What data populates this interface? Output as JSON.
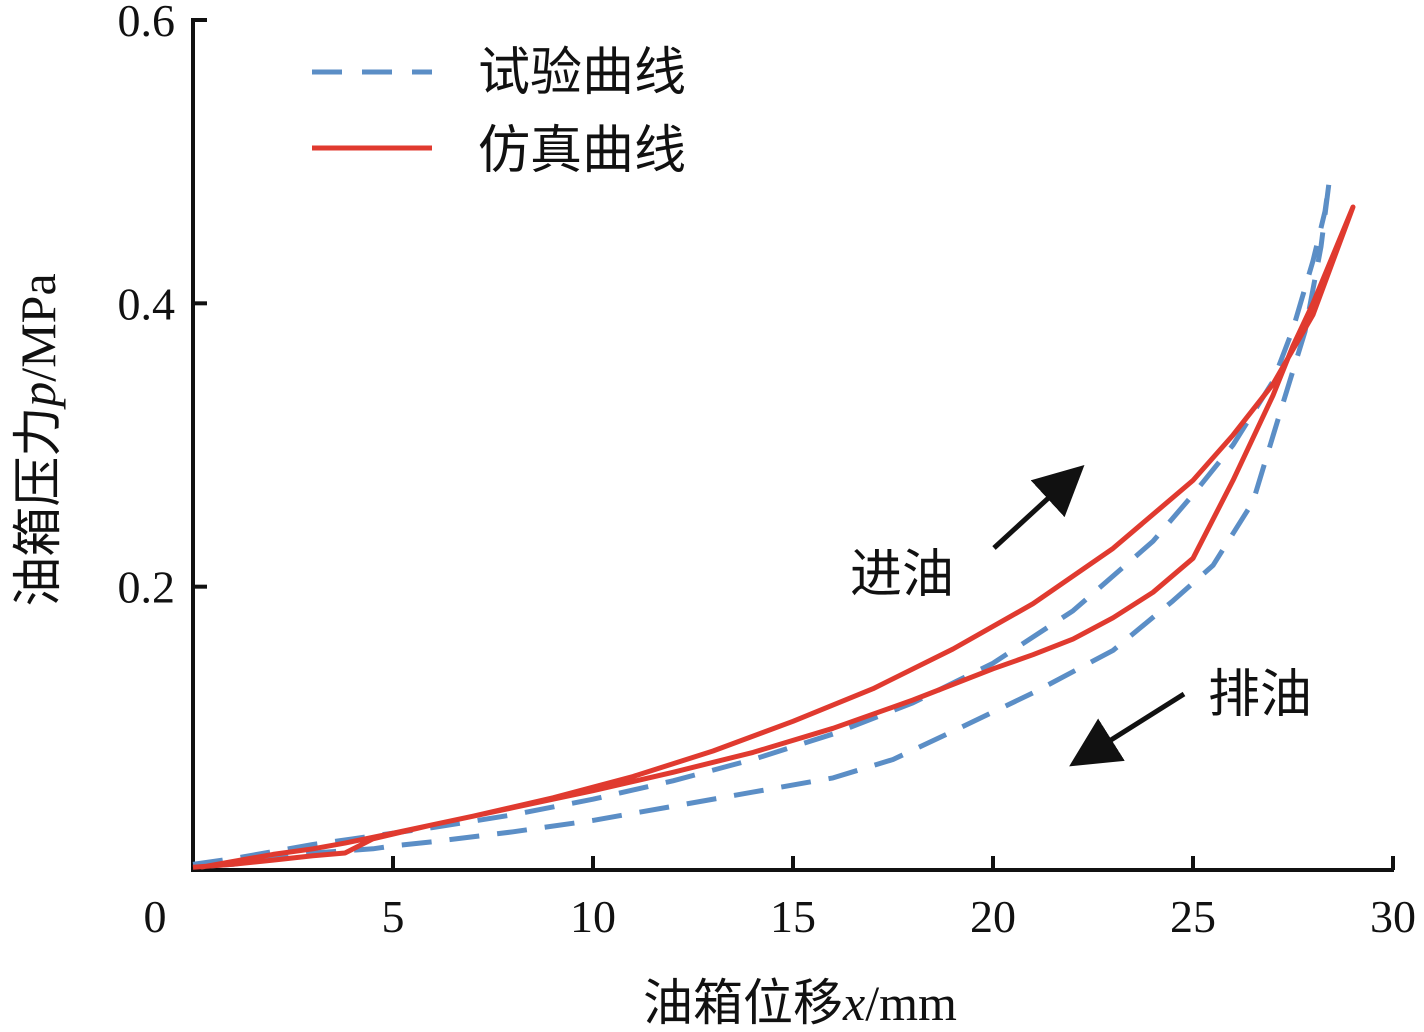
{
  "chart_data": {
    "type": "line",
    "title": "",
    "xlabel_main": "油箱位移",
    "xlabel_var": "x",
    "xlabel_unit": "/mm",
    "ylabel_main": "油箱压力",
    "ylabel_var": "p",
    "ylabel_unit": "/MPa",
    "xlim": [
      0,
      30
    ],
    "ylim": [
      0,
      0.6
    ],
    "xticks": [
      0,
      5,
      10,
      15,
      20,
      25,
      30
    ],
    "yticks": [
      0.2,
      0.4,
      0.6
    ],
    "xtick_labels": [
      "0",
      "5",
      "10",
      "15",
      "20",
      "25",
      "30"
    ],
    "ytick_labels": [
      "0.2",
      "0.4",
      "0.6"
    ],
    "legend_position": "top-left",
    "series": [
      {
        "name": "试验曲线",
        "style": "dashed",
        "color": "#5b8ec6",
        "x": [
          0,
          1,
          2,
          3,
          4,
          6,
          8,
          10,
          12,
          14,
          16,
          18,
          20,
          22,
          24,
          25,
          26,
          27,
          27.5,
          28,
          28.3,
          28.4,
          28.2,
          27.8,
          27.2,
          26.5,
          25.5,
          24.5,
          23,
          21,
          19,
          17.5,
          16,
          14,
          12,
          10,
          8,
          6,
          5,
          4.5,
          4,
          3.5,
          3,
          2,
          1,
          0
        ],
        "y": [
          0.004,
          0.008,
          0.013,
          0.018,
          0.022,
          0.03,
          0.039,
          0.05,
          0.063,
          0.078,
          0.096,
          0.118,
          0.146,
          0.183,
          0.232,
          0.265,
          0.3,
          0.345,
          0.382,
          0.43,
          0.465,
          0.485,
          0.44,
          0.38,
          0.325,
          0.26,
          0.215,
          0.19,
          0.155,
          0.125,
          0.098,
          0.078,
          0.065,
          0.055,
          0.045,
          0.035,
          0.027,
          0.02,
          0.017,
          0.015,
          0.014,
          0.013,
          0.012,
          0.008,
          0.004,
          0.002
        ]
      },
      {
        "name": "仿真曲线",
        "style": "solid",
        "color": "#e03a2f",
        "x": [
          0.2,
          1,
          2,
          3,
          3.8,
          5,
          7,
          9,
          11,
          13,
          15,
          17,
          19,
          21,
          23,
          25,
          26,
          27,
          28,
          29,
          28.5,
          28,
          27.5,
          27,
          26,
          25,
          24,
          23,
          22,
          21,
          20,
          18,
          16,
          14,
          12,
          10,
          8,
          6,
          4.5,
          3.8,
          3,
          2,
          1,
          0
        ],
        "y": [
          0.002,
          0.006,
          0.011,
          0.015,
          0.019,
          0.026,
          0.038,
          0.051,
          0.066,
          0.084,
          0.105,
          0.128,
          0.156,
          0.188,
          0.227,
          0.275,
          0.307,
          0.343,
          0.392,
          0.468,
          0.434,
          0.4,
          0.37,
          0.335,
          0.275,
          0.22,
          0.196,
          0.178,
          0.163,
          0.152,
          0.142,
          0.12,
          0.1,
          0.083,
          0.069,
          0.056,
          0.044,
          0.032,
          0.022,
          0.012,
          0.01,
          0.007,
          0.004,
          0.002
        ]
      }
    ],
    "annotations": [
      {
        "text": "进油",
        "direction": "up-right"
      },
      {
        "text": "排油",
        "direction": "down-left"
      }
    ]
  }
}
